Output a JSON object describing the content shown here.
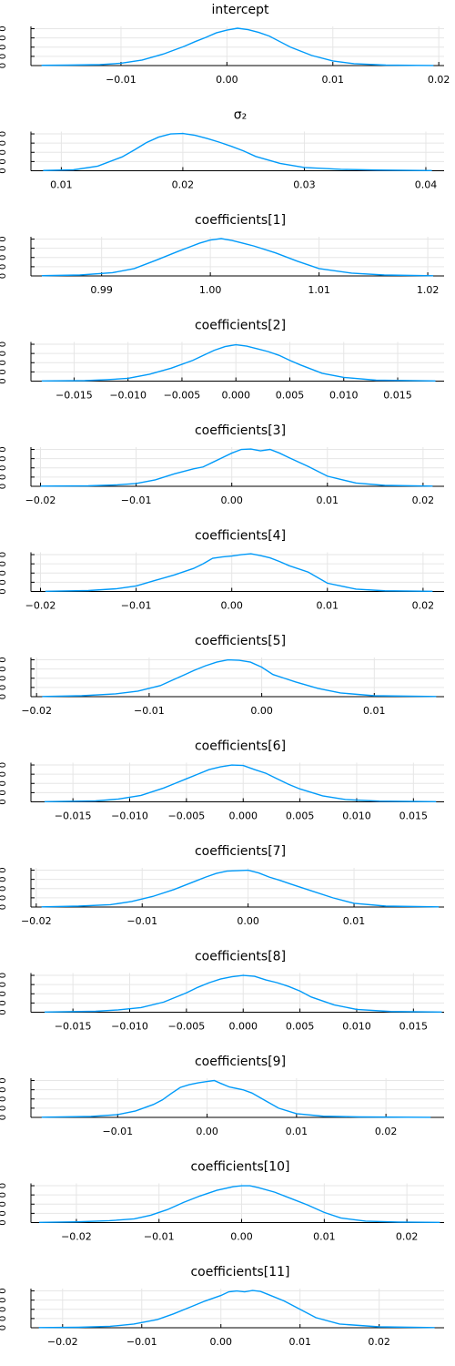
{
  "chart_data": [
    {
      "type": "line",
      "title": "intercept",
      "xlim": [
        -0.0185,
        0.0205
      ],
      "xticks": [
        -0.01,
        0.0,
        0.01,
        0.02
      ],
      "xticklabels": [
        "−0.01",
        "0.00",
        "0.01",
        "0.02"
      ],
      "ylim": [
        0,
        85
      ],
      "yticks": [
        0,
        20,
        40,
        60,
        80
      ],
      "yticklabels": [
        "0",
        "0",
        "0",
        "0",
        "0"
      ],
      "series": [
        {
          "x": [
            -0.0175,
            -0.015,
            -0.012,
            -0.01,
            -0.008,
            -0.006,
            -0.004,
            -0.003,
            -0.002,
            -0.001,
            0.0,
            0.001,
            0.002,
            0.003,
            0.004,
            0.005,
            0.006,
            0.008,
            0.01,
            0.012,
            0.015,
            0.0195
          ],
          "y": [
            0.5,
            1,
            2,
            5,
            12,
            25,
            42,
            52,
            61,
            71,
            77,
            81,
            78,
            72,
            64,
            52,
            40,
            22,
            10,
            4,
            1,
            0.2
          ]
        }
      ]
    },
    {
      "type": "line",
      "title": "σ₂",
      "xlim": [
        0.0075,
        0.0415
      ],
      "xticks": [
        0.01,
        0.02,
        0.03,
        0.04
      ],
      "xticklabels": [
        "0.01",
        "0.02",
        "0.03",
        "0.04"
      ],
      "ylim": [
        0,
        85
      ],
      "yticks": [
        0,
        20,
        40,
        60,
        80
      ],
      "yticklabels": [
        "0",
        "0",
        "0",
        "0",
        "0"
      ],
      "series": [
        {
          "x": [
            0.0085,
            0.011,
            0.013,
            0.015,
            0.016,
            0.017,
            0.018,
            0.019,
            0.02,
            0.021,
            0.022,
            0.023,
            0.024,
            0.025,
            0.026,
            0.028,
            0.03,
            0.033,
            0.036,
            0.0405
          ],
          "y": [
            0.5,
            2,
            10,
            30,
            45,
            61,
            73,
            80,
            81,
            77,
            70,
            62,
            53,
            43,
            31,
            16,
            7,
            3,
            1.5,
            0.3
          ]
        }
      ]
    },
    {
      "type": "line",
      "title": "coefficients[1]",
      "xlim": [
        0.9835,
        1.0215
      ],
      "xticks": [
        0.99,
        1.0,
        1.01,
        1.02
      ],
      "xticklabels": [
        "0.99",
        "1.00",
        "1.01",
        "1.02"
      ],
      "ylim": [
        0,
        85
      ],
      "yticks": [
        0,
        20,
        40,
        60,
        80
      ],
      "yticklabels": [
        "0",
        "0",
        "0",
        "0",
        "0"
      ],
      "series": [
        {
          "x": [
            0.9845,
            0.988,
            0.991,
            0.993,
            0.995,
            0.997,
            0.998,
            0.999,
            1.0,
            1.001,
            1.002,
            1.003,
            1.004,
            1.006,
            1.008,
            1.01,
            1.013,
            1.016,
            1.0205
          ],
          "y": [
            0.5,
            2,
            7,
            16,
            34,
            53,
            62,
            71,
            78,
            81,
            77,
            71,
            65,
            50,
            32,
            16,
            6,
            2,
            0.3
          ]
        }
      ]
    },
    {
      "type": "line",
      "title": "coefficients[2]",
      "xlim": [
        -0.019,
        0.0193
      ],
      "xticks": [
        -0.015,
        -0.01,
        -0.005,
        0.0,
        0.005,
        0.01,
        0.015
      ],
      "xticklabels": [
        "−0.015",
        "−0.010",
        "−0.005",
        "0.000",
        "0.005",
        "0.010",
        "0.015"
      ],
      "ylim": [
        0,
        85
      ],
      "yticks": [
        0,
        20,
        40,
        60,
        80
      ],
      "yticklabels": [
        "0",
        "0",
        "0",
        "0",
        "0"
      ],
      "series": [
        {
          "x": [
            -0.018,
            -0.014,
            -0.012,
            -0.01,
            -0.008,
            -0.006,
            -0.004,
            -0.003,
            -0.002,
            -0.001,
            0.0,
            0.001,
            0.002,
            0.003,
            0.004,
            0.005,
            0.006,
            0.008,
            0.01,
            0.013,
            0.0185
          ],
          "y": [
            0.3,
            1,
            3,
            6,
            15,
            28,
            45,
            56,
            67,
            75,
            79,
            76,
            70,
            64,
            56,
            45,
            35,
            17,
            8,
            2,
            0.3
          ]
        }
      ]
    },
    {
      "type": "line",
      "title": "coefficients[3]",
      "xlim": [
        -0.021,
        0.0222
      ],
      "xticks": [
        -0.02,
        -0.01,
        0.0,
        0.01,
        0.02
      ],
      "xticklabels": [
        "−0.02",
        "−0.01",
        "0.00",
        "0.01",
        "0.02"
      ],
      "ylim": [
        0,
        85
      ],
      "yticks": [
        0,
        20,
        40,
        60,
        80
      ],
      "yticklabels": [
        "0",
        "0",
        "0",
        "0",
        "0"
      ],
      "series": [
        {
          "x": [
            -0.02,
            -0.015,
            -0.012,
            -0.01,
            -0.008,
            -0.006,
            -0.004,
            -0.003,
            -0.002,
            -0.001,
            0.0,
            0.001,
            0.002,
            0.003,
            0.004,
            0.005,
            0.006,
            0.008,
            0.01,
            0.013,
            0.016,
            0.021
          ],
          "y": [
            0.3,
            1,
            3,
            6,
            14,
            27,
            38,
            42,
            52,
            62,
            72,
            80,
            81,
            77,
            80,
            72,
            62,
            43,
            22,
            7,
            2,
            0.3
          ]
        }
      ]
    },
    {
      "type": "line",
      "title": "coefficients[4]",
      "xlim": [
        -0.021,
        0.0222
      ],
      "xticks": [
        -0.02,
        -0.01,
        0.0,
        0.01,
        0.02
      ],
      "xticklabels": [
        "−0.02",
        "−0.01",
        "0.00",
        "0.01",
        "0.02"
      ],
      "ylim": [
        0,
        85
      ],
      "yticks": [
        0,
        20,
        40,
        60,
        80
      ],
      "yticklabels": [
        "0",
        "0",
        "0",
        "0",
        "0"
      ],
      "series": [
        {
          "x": [
            -0.0195,
            -0.015,
            -0.012,
            -0.01,
            -0.008,
            -0.006,
            -0.004,
            -0.003,
            -0.002,
            -0.001,
            0.0,
            0.001,
            0.002,
            0.003,
            0.004,
            0.005,
            0.006,
            0.008,
            0.01,
            0.013,
            0.016,
            0.021
          ],
          "y": [
            0.3,
            2,
            6,
            12,
            24,
            36,
            50,
            60,
            72,
            75,
            77,
            80,
            82,
            78,
            73,
            65,
            56,
            42,
            18,
            5,
            1.5,
            0.3
          ]
        }
      ]
    },
    {
      "type": "line",
      "title": "coefficients[5]",
      "xlim": [
        -0.0205,
        0.0162
      ],
      "xticks": [
        -0.02,
        -0.01,
        0.0,
        0.01
      ],
      "xticklabels": [
        "−0.02",
        "−0.01",
        "0.00",
        "0.01"
      ],
      "ylim": [
        0,
        85
      ],
      "yticks": [
        0,
        20,
        40,
        60,
        80
      ],
      "yticklabels": [
        "0",
        "0",
        "0",
        "0",
        "0"
      ],
      "series": [
        {
          "x": [
            -0.0195,
            -0.016,
            -0.013,
            -0.011,
            -0.009,
            -0.008,
            -0.007,
            -0.006,
            -0.005,
            -0.004,
            -0.003,
            -0.002,
            -0.001,
            0.0,
            0.001,
            0.002,
            0.003,
            0.005,
            0.007,
            0.01,
            0.0155
          ],
          "y": [
            0.3,
            2,
            6,
            12,
            24,
            35,
            46,
            57,
            67,
            75,
            80,
            79,
            75,
            64,
            48,
            40,
            32,
            18,
            8,
            2,
            0.3
          ]
        }
      ]
    },
    {
      "type": "line",
      "title": "coefficients[6]",
      "xlim": [
        -0.0187,
        0.0177
      ],
      "xticks": [
        -0.015,
        -0.01,
        -0.005,
        0.0,
        0.005,
        0.01,
        0.015
      ],
      "xticklabels": [
        "−0.015",
        "−0.010",
        "−0.005",
        "0.000",
        "0.005",
        "0.010",
        "0.015"
      ],
      "ylim": [
        0,
        85
      ],
      "yticks": [
        0,
        20,
        40,
        60,
        80
      ],
      "yticklabels": [
        "0",
        "0",
        "0",
        "0",
        "0"
      ],
      "series": [
        {
          "x": [
            -0.0175,
            -0.013,
            -0.011,
            -0.009,
            -0.007,
            -0.006,
            -0.005,
            -0.004,
            -0.003,
            -0.002,
            -0.001,
            0.0,
            0.001,
            0.002,
            0.003,
            0.004,
            0.005,
            0.007,
            0.009,
            0.012,
            0.017
          ],
          "y": [
            0.3,
            2,
            6,
            14,
            30,
            40,
            50,
            60,
            70,
            76,
            80,
            79,
            70,
            62,
            50,
            38,
            28,
            13,
            5,
            1.5,
            0.3
          ]
        }
      ]
    },
    {
      "type": "line",
      "title": "coefficients[7]",
      "xlim": [
        -0.0205,
        0.0185
      ],
      "xticks": [
        -0.02,
        -0.01,
        0.0,
        0.01
      ],
      "xticklabels": [
        "−0.02",
        "−0.01",
        "0.00",
        "0.01"
      ],
      "ylim": [
        0,
        85
      ],
      "yticks": [
        0,
        20,
        40,
        60,
        80
      ],
      "yticklabels": [
        "0",
        "0",
        "0",
        "0",
        "0"
      ],
      "series": [
        {
          "x": [
            -0.0195,
            -0.016,
            -0.013,
            -0.011,
            -0.009,
            -0.007,
            -0.005,
            -0.004,
            -0.003,
            -0.002,
            -0.001,
            0.0,
            0.001,
            0.002,
            0.003,
            0.004,
            0.006,
            0.008,
            0.01,
            0.013,
            0.018
          ],
          "y": [
            0.3,
            2,
            5,
            12,
            23,
            38,
            56,
            65,
            73,
            78,
            79,
            80,
            74,
            65,
            58,
            50,
            35,
            20,
            8,
            2,
            0.3
          ]
        }
      ]
    },
    {
      "type": "line",
      "title": "coefficients[8]",
      "xlim": [
        -0.0187,
        0.0177
      ],
      "xticks": [
        -0.015,
        -0.01,
        -0.005,
        0.0,
        0.005,
        0.01,
        0.015
      ],
      "xticklabels": [
        "−0.015",
        "−0.010",
        "−0.005",
        "0.000",
        "0.005",
        "0.010",
        "0.015"
      ],
      "ylim": [
        0,
        85
      ],
      "yticks": [
        0,
        20,
        40,
        60,
        80
      ],
      "yticklabels": [
        "0",
        "0",
        "0",
        "0",
        "0"
      ],
      "series": [
        {
          "x": [
            -0.0175,
            -0.013,
            -0.011,
            -0.009,
            -0.007,
            -0.005,
            -0.004,
            -0.003,
            -0.002,
            -0.001,
            0.0,
            0.001,
            0.002,
            0.003,
            0.004,
            0.005,
            0.006,
            0.008,
            0.01,
            0.013,
            0.0175
          ],
          "y": [
            0.3,
            2,
            5,
            10,
            22,
            42,
            54,
            64,
            72,
            77,
            80,
            78,
            70,
            64,
            56,
            46,
            33,
            16,
            6,
            1.5,
            0.3
          ]
        }
      ]
    },
    {
      "type": "line",
      "title": "coefficients[9]",
      "xlim": [
        -0.0197,
        0.0265
      ],
      "xticks": [
        -0.01,
        0.0,
        0.01,
        0.02
      ],
      "xticklabels": [
        "−0.01",
        "0.00",
        "0.01",
        "0.02"
      ],
      "ylim": [
        0,
        85
      ],
      "yticks": [
        0,
        20,
        40,
        60,
        80
      ],
      "yticklabels": [
        "0",
        "0",
        "0",
        "0",
        "0"
      ],
      "series": [
        {
          "x": [
            -0.0185,
            -0.013,
            -0.01,
            -0.008,
            -0.006,
            -0.005,
            -0.004,
            -0.003,
            -0.002,
            -0.001,
            0.0,
            0.0008,
            0.0015,
            0.0025,
            0.004,
            0.005,
            0.006,
            0.008,
            0.01,
            0.013,
            0.017,
            0.025
          ],
          "y": [
            0.3,
            2,
            6,
            14,
            28,
            38,
            52,
            65,
            71,
            75,
            78,
            80,
            74,
            66,
            60,
            53,
            42,
            20,
            8,
            2.5,
            1,
            0.2
          ]
        }
      ]
    },
    {
      "type": "line",
      "title": "coefficients[10]",
      "xlim": [
        -0.0255,
        0.0245
      ],
      "xticks": [
        -0.02,
        -0.01,
        0.0,
        0.01,
        0.02
      ],
      "xticklabels": [
        "−0.02",
        "−0.01",
        "0.00",
        "0.01",
        "0.02"
      ],
      "ylim": [
        0,
        85
      ],
      "yticks": [
        0,
        20,
        40,
        60,
        80
      ],
      "yticklabels": [
        "0",
        "0",
        "0",
        "0",
        "0"
      ],
      "series": [
        {
          "x": [
            -0.0245,
            -0.02,
            -0.016,
            -0.013,
            -0.011,
            -0.009,
            -0.007,
            -0.005,
            -0.003,
            -0.001,
            0.0,
            0.001,
            0.002,
            0.004,
            0.006,
            0.008,
            0.01,
            0.012,
            0.015,
            0.019,
            0.024
          ],
          "y": [
            0.3,
            1.5,
            4,
            8,
            16,
            28,
            44,
            58,
            70,
            78,
            80,
            80,
            76,
            66,
            52,
            38,
            22,
            10,
            3,
            1,
            0.3
          ]
        }
      ]
    },
    {
      "type": "line",
      "title": "coefficients[11]",
      "xlim": [
        -0.024,
        0.0282
      ],
      "xticks": [
        -0.02,
        -0.01,
        0.0,
        0.01,
        0.02
      ],
      "xticklabels": [
        "−0.02",
        "−0.01",
        "0.00",
        "0.01",
        "0.02"
      ],
      "ylim": [
        0,
        85
      ],
      "yticks": [
        0,
        20,
        40,
        60,
        80
      ],
      "yticklabels": [
        "0",
        "0",
        "0",
        "0",
        "0"
      ],
      "series": [
        {
          "x": [
            -0.023,
            -0.018,
            -0.014,
            -0.011,
            -0.008,
            -0.006,
            -0.004,
            -0.002,
            0.0,
            0.001,
            0.002,
            0.003,
            0.004,
            0.005,
            0.006,
            0.008,
            0.01,
            0.012,
            0.015,
            0.02,
            0.027
          ],
          "y": [
            0.3,
            1,
            3,
            8,
            18,
            30,
            44,
            58,
            70,
            78,
            80,
            78,
            81,
            79,
            72,
            58,
            40,
            22,
            8,
            2,
            0.3
          ]
        }
      ]
    }
  ],
  "colors": {
    "series": "#009AF9",
    "grid": "#E6E6E6",
    "axis": "#000000"
  }
}
